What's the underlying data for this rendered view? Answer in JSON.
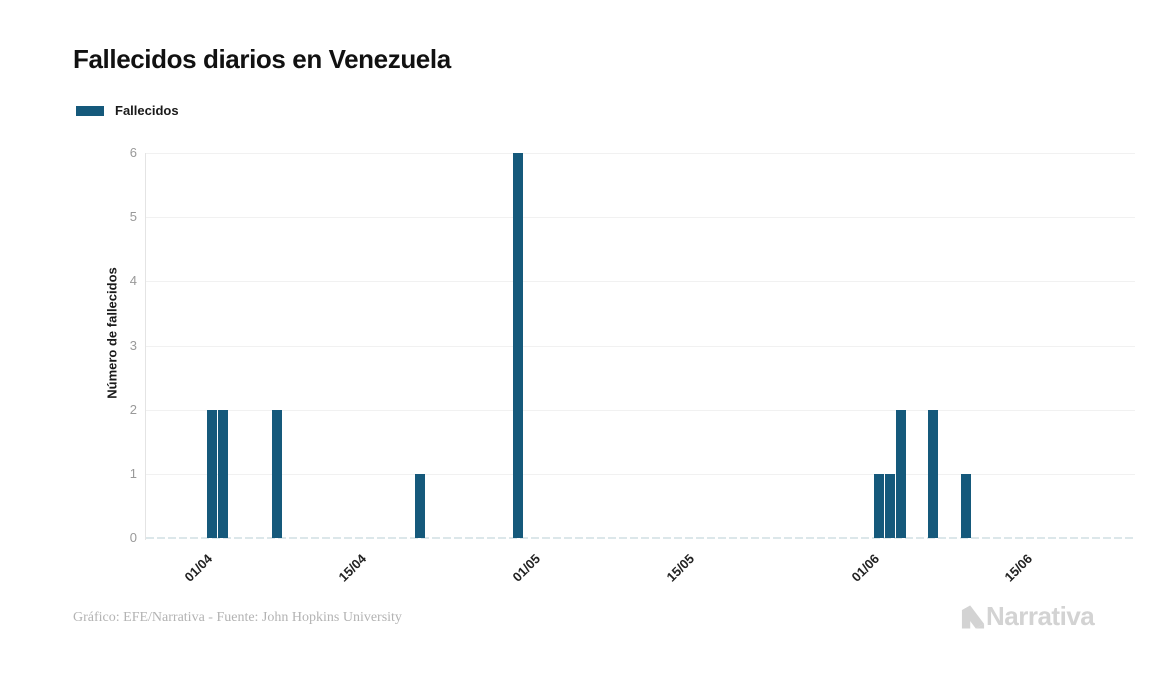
{
  "title": "Fallecidos diarios en Venezuela",
  "legend": {
    "label": "Fallecidos"
  },
  "footer": {
    "credit": "Gráfico: EFE/Narrativa - Fuente: John Hopkins University"
  },
  "brand": {
    "name": "Narrativa",
    "icon": "narrativa-n-logo"
  },
  "colors": {
    "bar": "#15597B",
    "gridline": "#f1f1f1",
    "axis_line": "#e4e4e4",
    "zero_dash": "#dce7ea",
    "y_tick_label": "#999999",
    "x_tick_label": "#222222",
    "title_text": "#111111",
    "footer_text": "#b3b3b3",
    "logo": "#d3d3d3"
  },
  "chart_data": {
    "type": "bar",
    "title": "Fallecidos diarios en Venezuela",
    "xlabel": "",
    "ylabel": "Número de fallecidos",
    "ylim": [
      0,
      6
    ],
    "y_ticks": [
      0,
      1,
      2,
      3,
      4,
      5,
      6
    ],
    "grid": true,
    "legend_position": "top-left",
    "series_name": "Fallecidos",
    "x_ticks": [
      {
        "label": "01/04",
        "day": 0
      },
      {
        "label": "15/04",
        "day": 14
      },
      {
        "label": "01/05",
        "day": 30
      },
      {
        "label": "15/05",
        "day": 44
      },
      {
        "label": "01/06",
        "day": 61
      },
      {
        "label": "15/06",
        "day": 75
      }
    ],
    "bars": [
      {
        "date": "03/04",
        "day": 2,
        "value": 2
      },
      {
        "date": "04/04",
        "day": 3,
        "value": 2
      },
      {
        "date": "09/04",
        "day": 8,
        "value": 2
      },
      {
        "date": "22/04",
        "day": 21,
        "value": 1
      },
      {
        "date": "01/05",
        "day": 30,
        "value": 6
      },
      {
        "date": "03/06",
        "day": 63,
        "value": 1
      },
      {
        "date": "04/06",
        "day": 64,
        "value": 1
      },
      {
        "date": "05/06",
        "day": 65,
        "value": 2
      },
      {
        "date": "08/06",
        "day": 68,
        "value": 2
      },
      {
        "date": "11/06",
        "day": 71,
        "value": 1
      }
    ],
    "other_days_value": 0
  }
}
